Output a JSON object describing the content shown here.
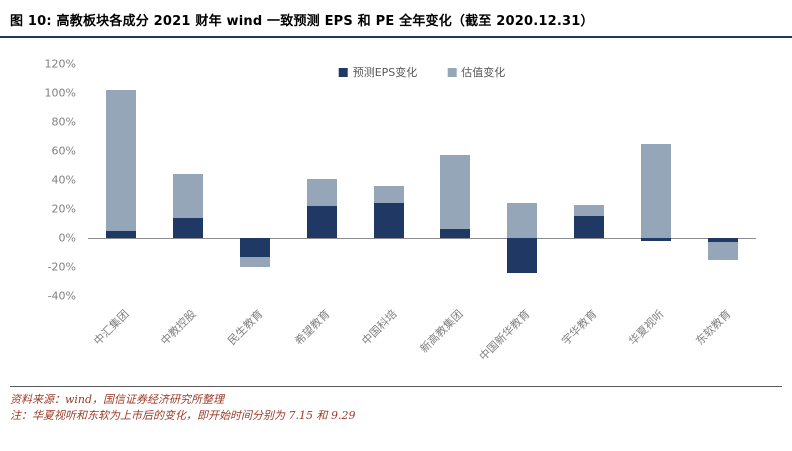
{
  "header": {
    "title": "图 10:  高教板块各成分 2021 财年 wind 一致预测 EPS 和 PE 全年变化（截至 2020.12.31）"
  },
  "chart_data": {
    "type": "bar",
    "stacked": true,
    "title": "高教板块各成分 2021 财年 wind 一致预测 EPS 和 PE 全年变化（截至 2020.12.31）",
    "categories": [
      "中汇集团",
      "中教控股",
      "民生教育",
      "希望教育",
      "中国科培",
      "新高教集团",
      "中国新华教育",
      "宇华教育",
      "华夏视听",
      "东软教育"
    ],
    "series": [
      {
        "name": "预测EPS变化",
        "color": "#1f3864",
        "values": [
          5,
          14,
          -13,
          22,
          24,
          6,
          -24,
          15,
          -2,
          -3
        ]
      },
      {
        "name": "估值变化",
        "color": "#94a6b8",
        "values": [
          97,
          30,
          -7,
          19,
          12,
          51,
          24,
          8,
          65,
          -12
        ]
      }
    ],
    "ylim": [
      -40,
      120
    ],
    "ytick_values": [
      -40,
      -20,
      0,
      20,
      40,
      60,
      80,
      100,
      120
    ],
    "ytick_labels": [
      "-40%",
      "-20%",
      "0%",
      "20%",
      "40%",
      "60%",
      "80%",
      "100%",
      "120%"
    ],
    "legend_position": "top-center",
    "grid": false
  },
  "colors": {
    "accent_rule": "#1f3864",
    "eps_bar": "#1f3864",
    "valuation_bar": "#94a6b8",
    "axis_text": "#808080",
    "footer_text": "#9a3b26"
  },
  "footer": {
    "source": "资料来源：wind，国信证券经济研究所整理",
    "note": "注：华夏视听和东软为上市后的变化，即开始时间分别为 7.15 和 9.29"
  }
}
